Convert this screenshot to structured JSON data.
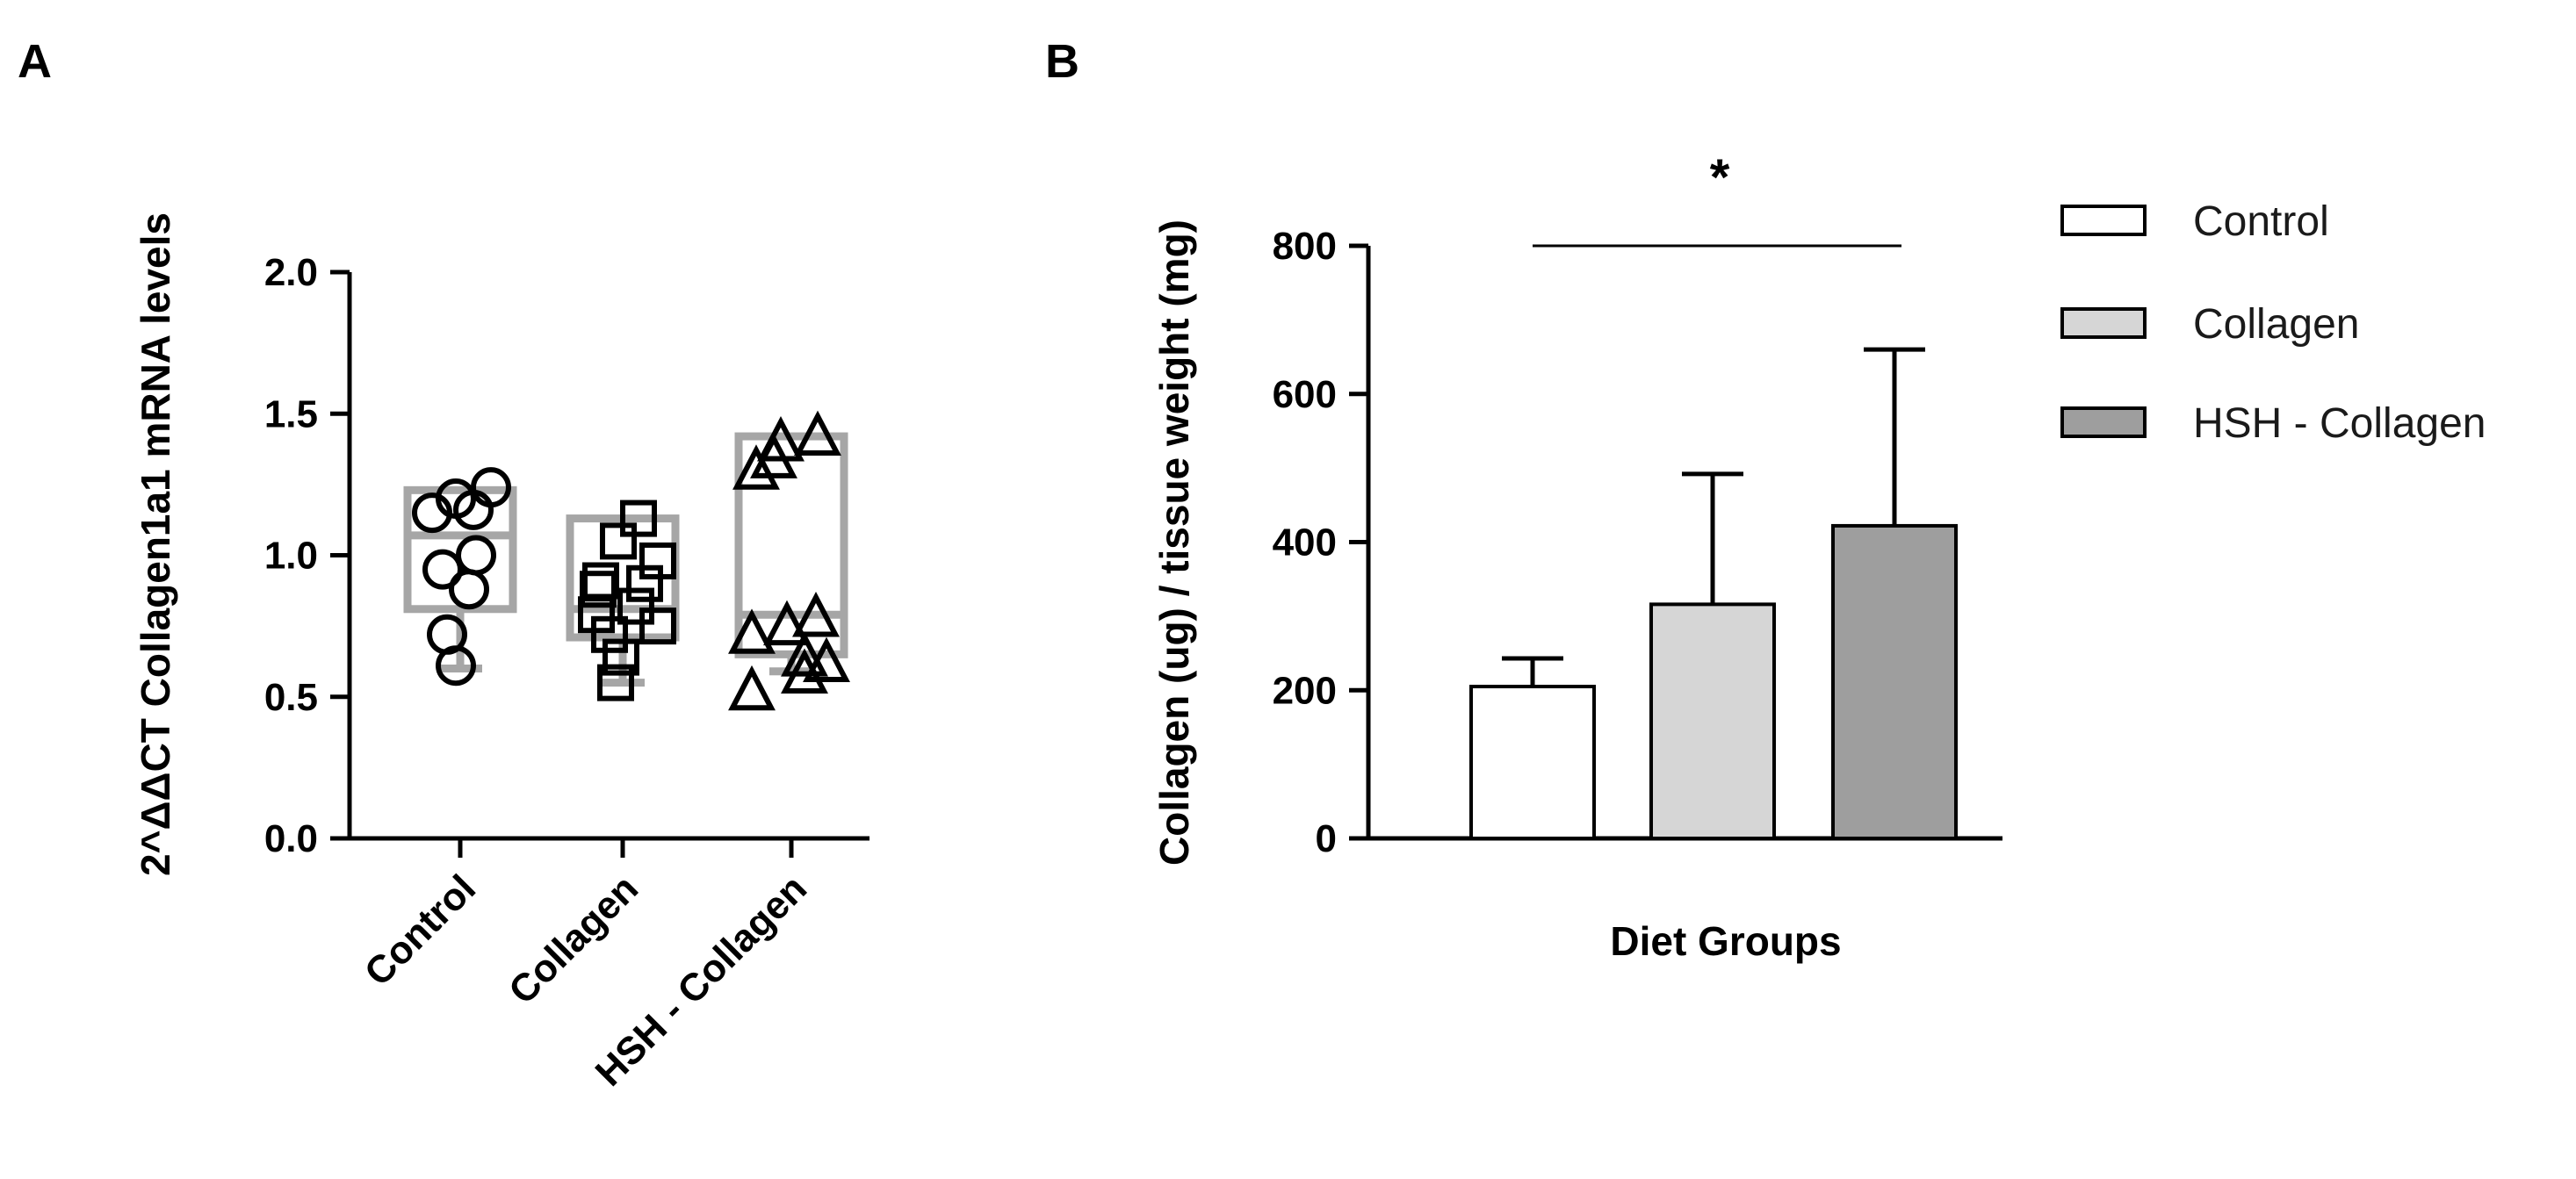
{
  "chart_data": [
    {
      "panel": "A",
      "type": "scatter",
      "subtype": "floating-bar-with-points",
      "ylabel": "2^ΔΔCT Collagen1a1 mRNA levels",
      "xlabel": "",
      "ylim": [
        0,
        2
      ],
      "yticks": [
        0.0,
        0.5,
        1.0,
        1.5,
        2.0
      ],
      "ytick_labels": [
        "0.0",
        "0.5",
        "1.0",
        "1.5",
        "2.0"
      ],
      "categories": [
        "Control",
        "Collagen",
        "HSH - Collagen"
      ],
      "series": [
        {
          "name": "Control",
          "marker": "circle",
          "box": {
            "min": 0.6,
            "q1": 0.81,
            "mean": 1.07,
            "max": 1.23
          },
          "points": [
            1.24,
            1.2,
            1.15,
            1.16,
            1.0,
            0.95,
            0.88,
            0.72,
            0.61
          ]
        },
        {
          "name": "Collagen",
          "marker": "square",
          "box": {
            "min": 0.55,
            "q1": 0.71,
            "mean": 0.81,
            "max": 1.13
          },
          "points": [
            1.13,
            1.05,
            0.98,
            0.91,
            0.9,
            0.88,
            0.82,
            0.79,
            0.75,
            0.72,
            0.64,
            0.55
          ]
        },
        {
          "name": "HSH - Collagen",
          "marker": "triangle",
          "box": {
            "min": 0.59,
            "q1": 0.65,
            "mean": 0.79,
            "max": 1.42
          },
          "points": [
            1.42,
            1.4,
            1.34,
            1.3,
            0.78,
            0.75,
            0.72,
            0.64,
            0.62,
            0.58,
            0.52
          ]
        }
      ]
    },
    {
      "panel": "B",
      "type": "bar",
      "ylabel": "Collagen (ug) / tissue weight (mg)",
      "xlabel": "Diet Groups",
      "ylim": [
        0,
        800
      ],
      "yticks": [
        0,
        200,
        400,
        600,
        800
      ],
      "ytick_labels": [
        "0",
        "200",
        "400",
        "600",
        "800"
      ],
      "categories": [
        "Control",
        "Collagen",
        "HSH - Collagen"
      ],
      "values": [
        205,
        316,
        422
      ],
      "errors": [
        38,
        176,
        238
      ],
      "colors": [
        "#ffffff",
        "#d6d6d6",
        "#9e9e9e"
      ],
      "significance": {
        "label": "*",
        "from": "Control",
        "to": "HSH - Collagen"
      },
      "legend": [
        {
          "label": "Control",
          "color": "#ffffff"
        },
        {
          "label": "Collagen",
          "color": "#d6d6d6"
        },
        {
          "label": "HSH - Collagen",
          "color": "#9e9e9e"
        }
      ],
      "legend_position": "right"
    }
  ]
}
